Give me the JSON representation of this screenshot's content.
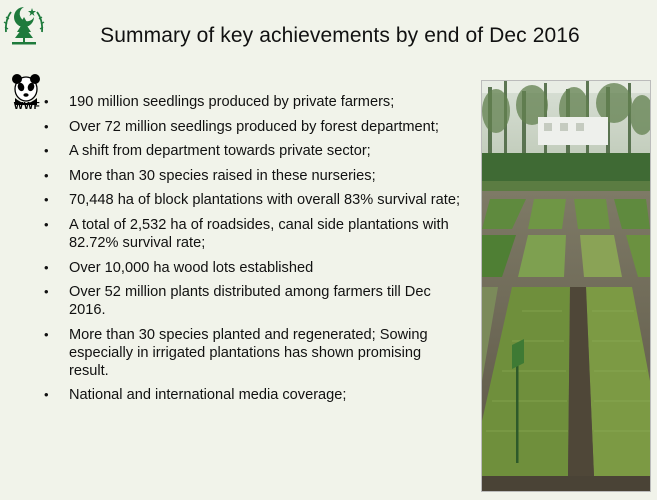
{
  "slide": {
    "title": "Summary of key achievements by end of Dec 2016",
    "logos": {
      "emblem_icon": "government-emblem-icon",
      "wwf_icon": "wwf-panda-icon",
      "wwf_text": "WWF"
    },
    "bullets": [
      "190 million seedlings produced by private farmers;",
      "Over 72 million seedlings produced by forest department;",
      "A shift from department towards private sector;",
      "More than 30 species raised in these nurseries;",
      "70,448 ha of block plantations with overall 83% survival rate;",
      "A total of 2,532 ha of roadsides, canal side plantations with 82.72% survival rate;",
      "Over 10,000 ha wood lots established",
      "Over 52 million plants distributed  among farmers till Dec 2016.",
      "More than 30 species planted and regenerated; Sowing especially in irrigated plantations has shown promising result.",
      "National and international media coverage;"
    ],
    "photo": "nursery-seedling-beds-photo"
  },
  "colors": {
    "background": "#f1f3ea",
    "emblem_green": "#1e7a3c",
    "text": "#111111"
  }
}
